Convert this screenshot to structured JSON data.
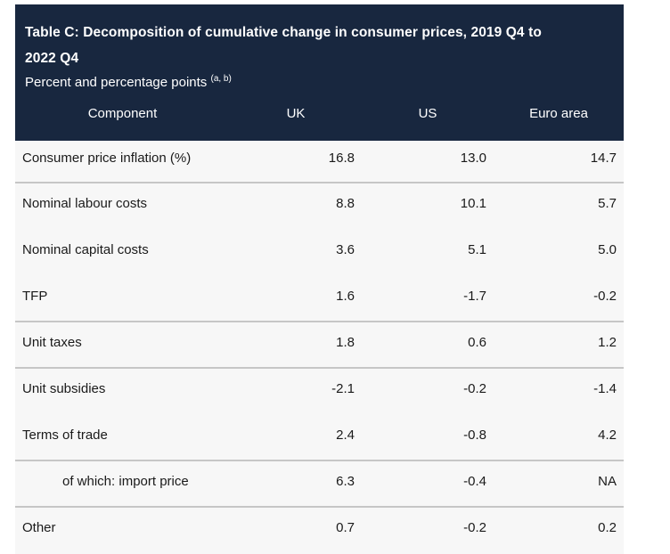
{
  "style": {
    "header_bg": "#18273f",
    "header_text": "#ffffff",
    "body_bg": "#f7f7f7",
    "divider_color": "#c6c6c6",
    "page_bg": "#ffffff"
  },
  "chart_data": {
    "type": "table",
    "title": "Table C: Decomposition of cumulative change in consumer prices, 2019 Q4 to 2022 Q4",
    "title_line1": "Table C: Decomposition of cumulative change in consumer prices, 2019 Q4 to",
    "title_line2": "2022 Q4",
    "subtitle": "Percent and percentage points",
    "subtitle_note": "(a, b)",
    "columns": [
      "Component",
      "UK",
      "US",
      "Euro area"
    ],
    "rows": [
      {
        "label": "Consumer price inflation (%)",
        "values": [
          "16.8",
          "13.0",
          "14.7"
        ],
        "divider_below": true,
        "indent": false
      },
      {
        "label": "Nominal labour costs",
        "values": [
          "8.8",
          "10.1",
          "5.7"
        ],
        "divider_below": false,
        "indent": false
      },
      {
        "label": "Nominal capital costs",
        "values": [
          "3.6",
          "5.1",
          "5.0"
        ],
        "divider_below": false,
        "indent": false
      },
      {
        "label": "TFP",
        "values": [
          "1.6",
          "-1.7",
          "-0.2"
        ],
        "divider_below": true,
        "indent": false
      },
      {
        "label": "Unit taxes",
        "values": [
          "1.8",
          "0.6",
          "1.2"
        ],
        "divider_below": true,
        "indent": false
      },
      {
        "label": "Unit subsidies",
        "values": [
          "-2.1",
          "-0.2",
          "-1.4"
        ],
        "divider_below": false,
        "indent": false
      },
      {
        "label": "Terms of trade",
        "values": [
          "2.4",
          "-0.8",
          "4.2"
        ],
        "divider_below": true,
        "indent": false
      },
      {
        "label": "of which: import price",
        "values": [
          "6.3",
          "-0.4",
          "NA"
        ],
        "divider_below": true,
        "indent": true
      },
      {
        "label": "Other",
        "values": [
          "0.7",
          "-0.2",
          "0.2"
        ],
        "divider_below": false,
        "indent": false
      }
    ]
  }
}
